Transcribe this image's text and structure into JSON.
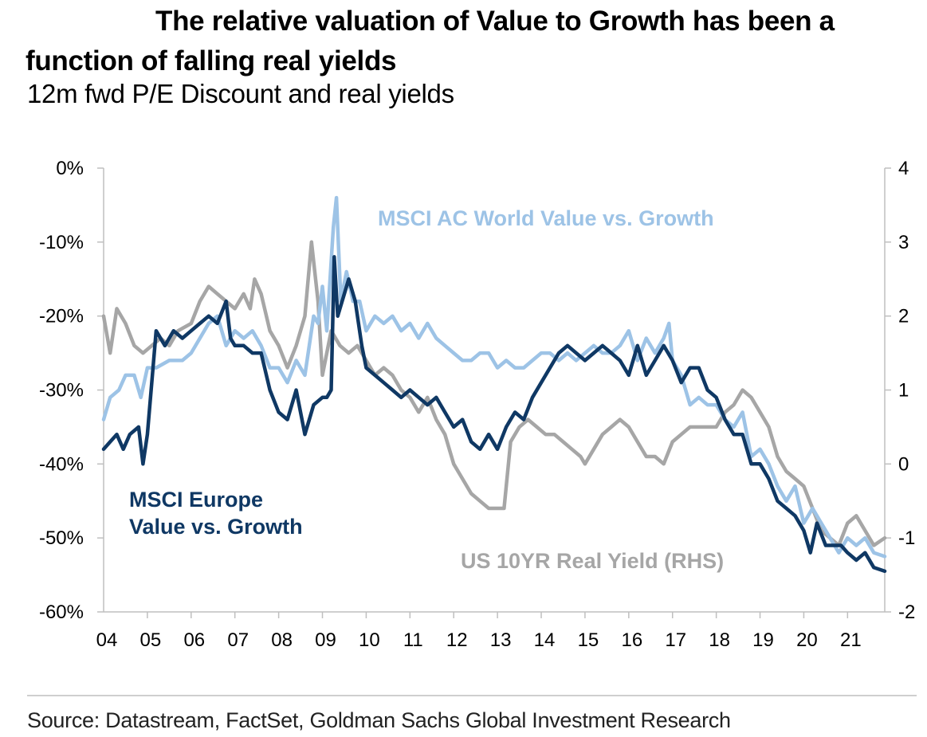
{
  "header": {
    "title": "The relative valuation of Value to Growth has been a function of falling real yields",
    "subtitle": "12m fwd P/E Discount and real yields"
  },
  "footer": {
    "source": "Source: Datastream, FactSet, Goldman Sachs Global Investment Research"
  },
  "colors": {
    "europe": "#0f3864",
    "world": "#9dc3e6",
    "real_yield": "#a6a6a6",
    "axis": "#bfbfbf"
  },
  "chart_data": {
    "type": "line",
    "x_ticks": [
      "04",
      "05",
      "06",
      "07",
      "08",
      "09",
      "10",
      "11",
      "12",
      "13",
      "14",
      "15",
      "16",
      "17",
      "18",
      "19",
      "20",
      "21"
    ],
    "x_range": [
      2004.0,
      2021.85
    ],
    "y_left": {
      "ticks": [
        "0%",
        "-10%",
        "-20%",
        "-30%",
        "-40%",
        "-50%",
        "-60%"
      ],
      "range": [
        -60,
        0
      ],
      "unit": "%"
    },
    "y_right": {
      "ticks": [
        "4",
        "3",
        "2",
        "1",
        "0",
        "-1",
        "-2"
      ],
      "range": [
        -2,
        4
      ]
    },
    "series": [
      {
        "name": "MSCI AC World Value vs. Growth",
        "axis": "left",
        "points": [
          [
            2004.0,
            -34
          ],
          [
            2004.15,
            -31
          ],
          [
            2004.35,
            -30
          ],
          [
            2004.5,
            -28
          ],
          [
            2004.7,
            -28
          ],
          [
            2004.85,
            -31
          ],
          [
            2005.0,
            -27
          ],
          [
            2005.2,
            -27
          ],
          [
            2005.5,
            -26
          ],
          [
            2005.8,
            -26
          ],
          [
            2006.0,
            -25
          ],
          [
            2006.2,
            -23
          ],
          [
            2006.4,
            -21
          ],
          [
            2006.6,
            -20
          ],
          [
            2006.8,
            -24
          ],
          [
            2007.0,
            -22
          ],
          [
            2007.2,
            -23
          ],
          [
            2007.4,
            -22
          ],
          [
            2007.6,
            -24
          ],
          [
            2007.8,
            -27
          ],
          [
            2008.0,
            -27
          ],
          [
            2008.2,
            -29
          ],
          [
            2008.4,
            -26
          ],
          [
            2008.6,
            -28
          ],
          [
            2008.8,
            -20
          ],
          [
            2008.9,
            -21
          ],
          [
            2009.0,
            -16
          ],
          [
            2009.1,
            -22
          ],
          [
            2009.25,
            -8
          ],
          [
            2009.32,
            -4
          ],
          [
            2009.42,
            -18
          ],
          [
            2009.55,
            -14
          ],
          [
            2009.7,
            -18
          ],
          [
            2009.85,
            -18
          ],
          [
            2010.0,
            -22
          ],
          [
            2010.2,
            -20
          ],
          [
            2010.4,
            -21
          ],
          [
            2010.6,
            -20
          ],
          [
            2010.8,
            -22
          ],
          [
            2011.0,
            -21
          ],
          [
            2011.2,
            -23
          ],
          [
            2011.4,
            -21
          ],
          [
            2011.6,
            -23
          ],
          [
            2011.8,
            -24
          ],
          [
            2012.0,
            -25
          ],
          [
            2012.2,
            -26
          ],
          [
            2012.4,
            -26
          ],
          [
            2012.6,
            -25
          ],
          [
            2012.8,
            -25
          ],
          [
            2013.0,
            -27
          ],
          [
            2013.2,
            -26
          ],
          [
            2013.4,
            -27
          ],
          [
            2013.6,
            -27
          ],
          [
            2013.8,
            -26
          ],
          [
            2014.0,
            -25
          ],
          [
            2014.2,
            -25
          ],
          [
            2014.4,
            -26
          ],
          [
            2014.6,
            -25
          ],
          [
            2014.8,
            -26
          ],
          [
            2015.0,
            -25
          ],
          [
            2015.2,
            -24
          ],
          [
            2015.4,
            -25
          ],
          [
            2015.6,
            -25
          ],
          [
            2015.8,
            -24
          ],
          [
            2016.0,
            -22
          ],
          [
            2016.2,
            -26
          ],
          [
            2016.4,
            -23
          ],
          [
            2016.6,
            -25
          ],
          [
            2016.8,
            -23
          ],
          [
            2016.92,
            -21
          ],
          [
            2017.0,
            -26
          ],
          [
            2017.2,
            -28
          ],
          [
            2017.4,
            -32
          ],
          [
            2017.6,
            -31
          ],
          [
            2017.8,
            -32
          ],
          [
            2018.0,
            -32
          ],
          [
            2018.2,
            -34
          ],
          [
            2018.4,
            -35
          ],
          [
            2018.6,
            -33
          ],
          [
            2018.8,
            -39
          ],
          [
            2019.0,
            -38
          ],
          [
            2019.2,
            -40
          ],
          [
            2019.4,
            -43
          ],
          [
            2019.6,
            -45
          ],
          [
            2019.8,
            -43
          ],
          [
            2020.0,
            -48
          ],
          [
            2020.2,
            -46
          ],
          [
            2020.4,
            -48
          ],
          [
            2020.6,
            -50
          ],
          [
            2020.8,
            -52
          ],
          [
            2021.0,
            -50
          ],
          [
            2021.2,
            -51
          ],
          [
            2021.4,
            -50
          ],
          [
            2021.6,
            -52
          ],
          [
            2021.85,
            -52.5
          ]
        ]
      },
      {
        "name": "MSCI Europe Value vs. Growth",
        "axis": "left",
        "points": [
          [
            2004.0,
            -38
          ],
          [
            2004.15,
            -37
          ],
          [
            2004.3,
            -36
          ],
          [
            2004.45,
            -38
          ],
          [
            2004.6,
            -36
          ],
          [
            2004.8,
            -35
          ],
          [
            2004.9,
            -40
          ],
          [
            2005.0,
            -36
          ],
          [
            2005.2,
            -22
          ],
          [
            2005.4,
            -24
          ],
          [
            2005.6,
            -22
          ],
          [
            2005.8,
            -23
          ],
          [
            2006.0,
            -22
          ],
          [
            2006.2,
            -21
          ],
          [
            2006.4,
            -20
          ],
          [
            2006.6,
            -21
          ],
          [
            2006.8,
            -18
          ],
          [
            2006.9,
            -23
          ],
          [
            2007.0,
            -24
          ],
          [
            2007.2,
            -24
          ],
          [
            2007.4,
            -25
          ],
          [
            2007.6,
            -25
          ],
          [
            2007.8,
            -30
          ],
          [
            2008.0,
            -33
          ],
          [
            2008.2,
            -34
          ],
          [
            2008.4,
            -30
          ],
          [
            2008.6,
            -36
          ],
          [
            2008.8,
            -32
          ],
          [
            2009.0,
            -31
          ],
          [
            2009.1,
            -31
          ],
          [
            2009.2,
            -30
          ],
          [
            2009.27,
            -12
          ],
          [
            2009.35,
            -20
          ],
          [
            2009.5,
            -17
          ],
          [
            2009.6,
            -15
          ],
          [
            2009.75,
            -18
          ],
          [
            2009.9,
            -24
          ],
          [
            2010.0,
            -27
          ],
          [
            2010.2,
            -28
          ],
          [
            2010.4,
            -29
          ],
          [
            2010.6,
            -30
          ],
          [
            2010.8,
            -31
          ],
          [
            2011.0,
            -30
          ],
          [
            2011.2,
            -31
          ],
          [
            2011.4,
            -32
          ],
          [
            2011.6,
            -31
          ],
          [
            2011.8,
            -33
          ],
          [
            2012.0,
            -35
          ],
          [
            2012.2,
            -34
          ],
          [
            2012.4,
            -37
          ],
          [
            2012.6,
            -38
          ],
          [
            2012.8,
            -36
          ],
          [
            2013.0,
            -38
          ],
          [
            2013.2,
            -35
          ],
          [
            2013.4,
            -33
          ],
          [
            2013.6,
            -34
          ],
          [
            2013.8,
            -31
          ],
          [
            2014.0,
            -29
          ],
          [
            2014.2,
            -27
          ],
          [
            2014.4,
            -25
          ],
          [
            2014.6,
            -24
          ],
          [
            2014.8,
            -25
          ],
          [
            2015.0,
            -26
          ],
          [
            2015.2,
            -25
          ],
          [
            2015.4,
            -24
          ],
          [
            2015.6,
            -25
          ],
          [
            2015.8,
            -26
          ],
          [
            2016.0,
            -28
          ],
          [
            2016.2,
            -24
          ],
          [
            2016.4,
            -28
          ],
          [
            2016.6,
            -26
          ],
          [
            2016.8,
            -24
          ],
          [
            2017.0,
            -26
          ],
          [
            2017.2,
            -29
          ],
          [
            2017.4,
            -27
          ],
          [
            2017.6,
            -27
          ],
          [
            2017.8,
            -30
          ],
          [
            2018.0,
            -31
          ],
          [
            2018.2,
            -34
          ],
          [
            2018.4,
            -36
          ],
          [
            2018.6,
            -36
          ],
          [
            2018.8,
            -40
          ],
          [
            2019.0,
            -40
          ],
          [
            2019.2,
            -42
          ],
          [
            2019.4,
            -45
          ],
          [
            2019.6,
            -46
          ],
          [
            2019.8,
            -47
          ],
          [
            2020.0,
            -49
          ],
          [
            2020.15,
            -52
          ],
          [
            2020.3,
            -48
          ],
          [
            2020.5,
            -51
          ],
          [
            2020.7,
            -51
          ],
          [
            2020.85,
            -51
          ],
          [
            2021.0,
            -52
          ],
          [
            2021.2,
            -53
          ],
          [
            2021.4,
            -52
          ],
          [
            2021.6,
            -54
          ],
          [
            2021.85,
            -54.5
          ]
        ]
      },
      {
        "name": "US 10YR Real Yield (RHS)",
        "axis": "right",
        "points": [
          [
            2004.0,
            2.0
          ],
          [
            2004.15,
            1.5
          ],
          [
            2004.3,
            2.1
          ],
          [
            2004.5,
            1.9
          ],
          [
            2004.7,
            1.6
          ],
          [
            2004.9,
            1.5
          ],
          [
            2005.1,
            1.6
          ],
          [
            2005.3,
            1.7
          ],
          [
            2005.5,
            1.6
          ],
          [
            2005.7,
            1.8
          ],
          [
            2006.0,
            1.9
          ],
          [
            2006.2,
            2.2
          ],
          [
            2006.4,
            2.4
          ],
          [
            2006.6,
            2.3
          ],
          [
            2006.8,
            2.2
          ],
          [
            2007.0,
            2.1
          ],
          [
            2007.2,
            2.3
          ],
          [
            2007.35,
            2.1
          ],
          [
            2007.45,
            2.5
          ],
          [
            2007.6,
            2.3
          ],
          [
            2007.8,
            1.8
          ],
          [
            2008.0,
            1.6
          ],
          [
            2008.2,
            1.3
          ],
          [
            2008.4,
            1.6
          ],
          [
            2008.6,
            2.0
          ],
          [
            2008.75,
            3.0
          ],
          [
            2008.9,
            2.2
          ],
          [
            2009.0,
            1.2
          ],
          [
            2009.2,
            1.8
          ],
          [
            2009.4,
            1.6
          ],
          [
            2009.6,
            1.5
          ],
          [
            2009.8,
            1.6
          ],
          [
            2010.0,
            1.4
          ],
          [
            2010.2,
            1.2
          ],
          [
            2010.4,
            1.3
          ],
          [
            2010.6,
            1.2
          ],
          [
            2010.8,
            1.0
          ],
          [
            2011.0,
            0.9
          ],
          [
            2011.2,
            0.7
          ],
          [
            2011.4,
            0.9
          ],
          [
            2011.6,
            0.6
          ],
          [
            2011.8,
            0.4
          ],
          [
            2012.0,
            0.0
          ],
          [
            2012.2,
            -0.2
          ],
          [
            2012.4,
            -0.4
          ],
          [
            2012.6,
            -0.5
          ],
          [
            2012.8,
            -0.6
          ],
          [
            2013.0,
            -0.6
          ],
          [
            2013.15,
            -0.6
          ],
          [
            2013.3,
            0.3
          ],
          [
            2013.5,
            0.5
          ],
          [
            2013.7,
            0.6
          ],
          [
            2013.9,
            0.5
          ],
          [
            2014.1,
            0.4
          ],
          [
            2014.3,
            0.4
          ],
          [
            2014.5,
            0.3
          ],
          [
            2014.7,
            0.2
          ],
          [
            2014.9,
            0.1
          ],
          [
            2015.0,
            0.0
          ],
          [
            2015.2,
            0.2
          ],
          [
            2015.4,
            0.4
          ],
          [
            2015.6,
            0.5
          ],
          [
            2015.8,
            0.6
          ],
          [
            2016.0,
            0.5
          ],
          [
            2016.2,
            0.3
          ],
          [
            2016.4,
            0.1
          ],
          [
            2016.6,
            0.1
          ],
          [
            2016.8,
            0.0
          ],
          [
            2017.0,
            0.3
          ],
          [
            2017.2,
            0.4
          ],
          [
            2017.4,
            0.5
          ],
          [
            2017.6,
            0.5
          ],
          [
            2017.8,
            0.5
          ],
          [
            2018.0,
            0.5
          ],
          [
            2018.2,
            0.7
          ],
          [
            2018.4,
            0.8
          ],
          [
            2018.6,
            1.0
          ],
          [
            2018.8,
            0.9
          ],
          [
            2019.0,
            0.7
          ],
          [
            2019.2,
            0.5
          ],
          [
            2019.4,
            0.1
          ],
          [
            2019.6,
            -0.1
          ],
          [
            2019.8,
            -0.2
          ],
          [
            2020.0,
            -0.3
          ],
          [
            2020.2,
            -0.6
          ],
          [
            2020.4,
            -0.9
          ],
          [
            2020.6,
            -1.0
          ],
          [
            2020.8,
            -1.1
          ],
          [
            2021.0,
            -0.8
          ],
          [
            2021.2,
            -0.7
          ],
          [
            2021.4,
            -0.9
          ],
          [
            2021.6,
            -1.1
          ],
          [
            2021.85,
            -1.0
          ]
        ]
      }
    ]
  }
}
